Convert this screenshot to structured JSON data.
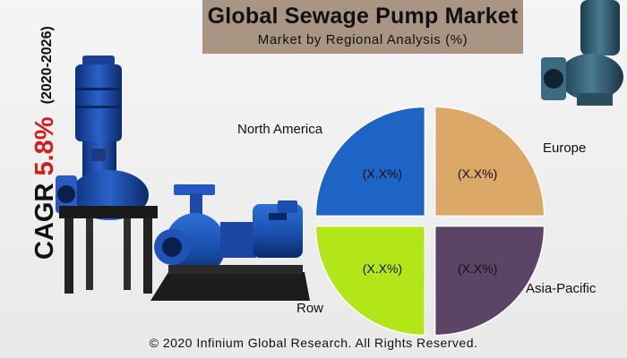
{
  "header": {
    "title": "Global Sewage Pump Market",
    "subtitle": "Market by Regional Analysis (%)"
  },
  "cagr": {
    "label": "CAGR",
    "value": "5.8%",
    "years": "(2020-2026)"
  },
  "chart_data": {
    "type": "pie",
    "slices": [
      {
        "label": "North America",
        "value_label": "(X.X%)",
        "share": 0.25,
        "color": "#1e63c6"
      },
      {
        "label": "Europe",
        "value_label": "(X.X%)",
        "share": 0.25,
        "color": "#dca868"
      },
      {
        "label": "Asia-Pacific",
        "value_label": "(X.X%)",
        "share": 0.25,
        "color": "#5b4466"
      },
      {
        "label": "Row",
        "value_label": "(X.X%)",
        "share": 0.25,
        "color": "#b2e619"
      }
    ]
  },
  "footer": {
    "copyright": "© 2020 Infinium Global Research. All Rights Reserved."
  }
}
